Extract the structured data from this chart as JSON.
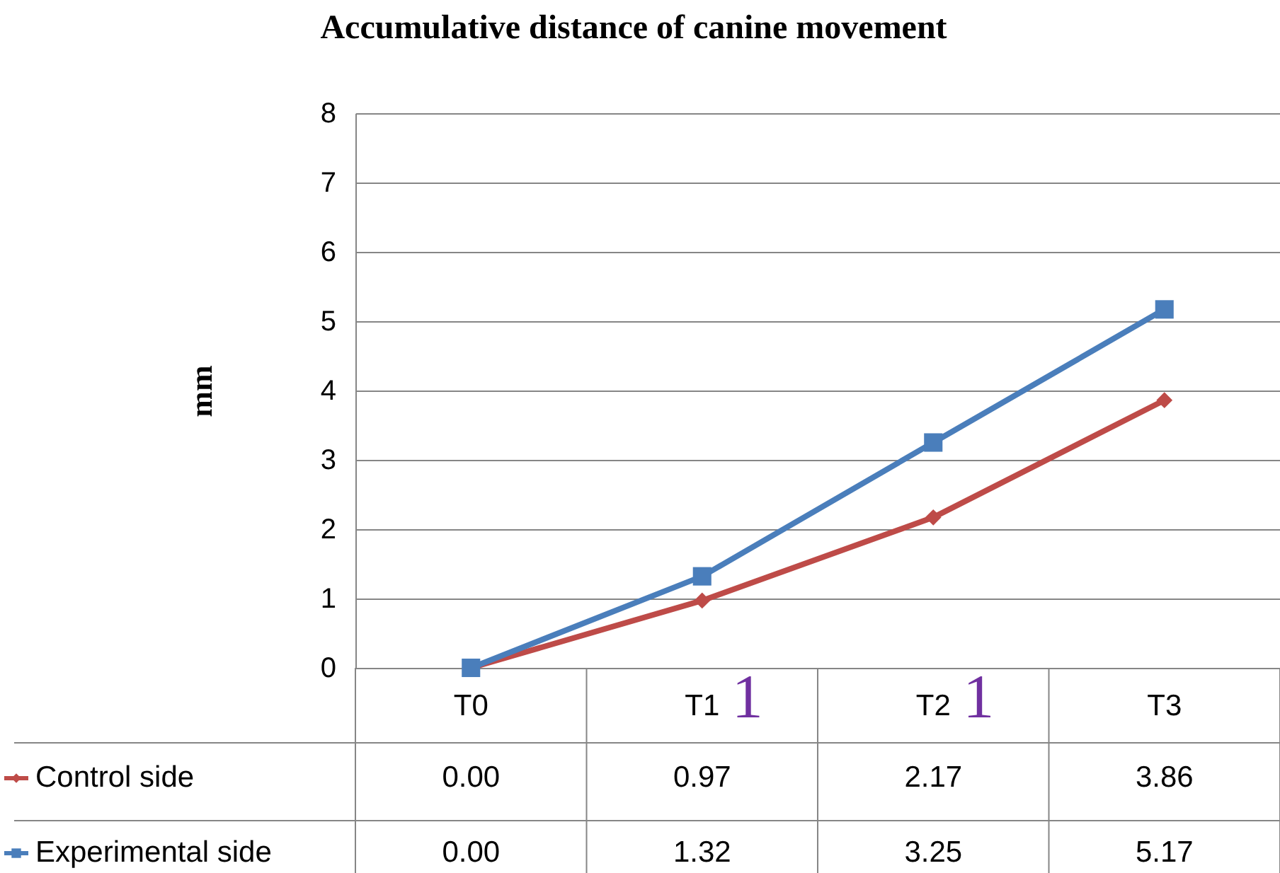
{
  "chart_data": {
    "type": "line",
    "title": "Accumulative distance of canine movement",
    "ylabel": "mm",
    "categories": [
      "T0",
      "T1",
      "T2",
      "T3"
    ],
    "series": [
      {
        "name": "Control side",
        "color": "#be4b48",
        "marker": "diamond",
        "values": [
          0.0,
          0.97,
          2.17,
          3.86
        ],
        "value_labels": [
          "0.00",
          "0.97",
          "2.17",
          "3.86"
        ]
      },
      {
        "name": "Experimental side",
        "color": "#4a7ebb",
        "marker": "square",
        "values": [
          0.0,
          1.32,
          3.25,
          5.17
        ],
        "value_labels": [
          "0.00",
          "1.32",
          "3.25",
          "5.17"
        ]
      }
    ],
    "annotations": [
      "1",
      "1"
    ],
    "ylim": [
      0,
      8
    ],
    "yticks": [
      0,
      1,
      2,
      3,
      4,
      5,
      6,
      7,
      8
    ],
    "grid": "y",
    "legend": "bottom",
    "line_style": "solid"
  }
}
